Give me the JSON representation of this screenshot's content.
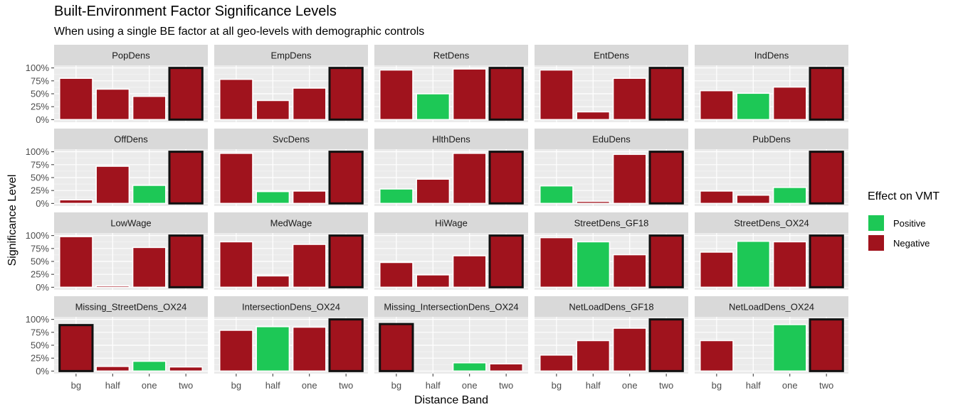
{
  "chart_data": {
    "type": "bar",
    "title": "Built-Environment Factor Significance Levels",
    "subtitle": "When using a single BE factor at all geo-levels with demographic controls",
    "xlabel": "Distance Band",
    "ylabel": "Significance Level",
    "categories": [
      "bg",
      "half",
      "one",
      "two"
    ],
    "y_ticks": [
      "0%",
      "25%",
      "50%",
      "75%",
      "100%"
    ],
    "ylim": [
      0,
      100
    ],
    "legend": {
      "title": "Effect on VMT",
      "position": "right",
      "items": [
        {
          "label": "Positive",
          "color": "#1dc856"
        },
        {
          "label": "Negative",
          "color": "#a0131d"
        }
      ]
    },
    "colors": {
      "Positive": "#1dc856",
      "Negative": "#a0131d",
      "panel_bg": "#ebebeb",
      "strip_bg": "#d9d9d9",
      "highlight_outline": "#111111"
    },
    "facets": [
      {
        "name": "PopDens",
        "bars": [
          {
            "value": 80,
            "effect": "Negative"
          },
          {
            "value": 59,
            "effect": "Negative"
          },
          {
            "value": 45,
            "effect": "Negative"
          },
          {
            "value": 100,
            "effect": "Negative",
            "outlined": true
          }
        ]
      },
      {
        "name": "EmpDens",
        "bars": [
          {
            "value": 78,
            "effect": "Negative"
          },
          {
            "value": 37,
            "effect": "Negative"
          },
          {
            "value": 61,
            "effect": "Negative"
          },
          {
            "value": 100,
            "effect": "Negative",
            "outlined": true
          }
        ]
      },
      {
        "name": "RetDens",
        "bars": [
          {
            "value": 96,
            "effect": "Negative"
          },
          {
            "value": 50,
            "effect": "Positive"
          },
          {
            "value": 98,
            "effect": "Negative"
          },
          {
            "value": 100,
            "effect": "Negative",
            "outlined": true
          }
        ]
      },
      {
        "name": "EntDens",
        "bars": [
          {
            "value": 96,
            "effect": "Negative"
          },
          {
            "value": 15,
            "effect": "Negative"
          },
          {
            "value": 80,
            "effect": "Negative"
          },
          {
            "value": 100,
            "effect": "Negative",
            "outlined": true
          }
        ]
      },
      {
        "name": "IndDens",
        "bars": [
          {
            "value": 56,
            "effect": "Negative"
          },
          {
            "value": 51,
            "effect": "Positive"
          },
          {
            "value": 63,
            "effect": "Negative"
          },
          {
            "value": 100,
            "effect": "Negative",
            "outlined": true
          }
        ]
      },
      {
        "name": "OffDens",
        "bars": [
          {
            "value": 7,
            "effect": "Negative"
          },
          {
            "value": 72,
            "effect": "Negative"
          },
          {
            "value": 35,
            "effect": "Positive"
          },
          {
            "value": 100,
            "effect": "Negative",
            "outlined": true
          }
        ]
      },
      {
        "name": "SvcDens",
        "bars": [
          {
            "value": 97,
            "effect": "Negative"
          },
          {
            "value": 23,
            "effect": "Positive"
          },
          {
            "value": 24,
            "effect": "Negative"
          },
          {
            "value": 100,
            "effect": "Negative",
            "outlined": true
          }
        ]
      },
      {
        "name": "HlthDens",
        "bars": [
          {
            "value": 28,
            "effect": "Positive"
          },
          {
            "value": 47,
            "effect": "Negative"
          },
          {
            "value": 97,
            "effect": "Negative"
          },
          {
            "value": 100,
            "effect": "Negative",
            "outlined": true
          }
        ]
      },
      {
        "name": "EduDens",
        "bars": [
          {
            "value": 34,
            "effect": "Positive"
          },
          {
            "value": 4,
            "effect": "Negative"
          },
          {
            "value": 95,
            "effect": "Negative"
          },
          {
            "value": 100,
            "effect": "Negative",
            "outlined": true
          }
        ]
      },
      {
        "name": "PubDens",
        "bars": [
          {
            "value": 24,
            "effect": "Negative"
          },
          {
            "value": 16,
            "effect": "Negative"
          },
          {
            "value": 31,
            "effect": "Positive"
          },
          {
            "value": 100,
            "effect": "Negative",
            "outlined": true
          }
        ]
      },
      {
        "name": "LowWage",
        "bars": [
          {
            "value": 98,
            "effect": "Negative"
          },
          {
            "value": 3,
            "effect": "Negative"
          },
          {
            "value": 77,
            "effect": "Negative"
          },
          {
            "value": 100,
            "effect": "Negative",
            "outlined": true
          }
        ]
      },
      {
        "name": "MedWage",
        "bars": [
          {
            "value": 88,
            "effect": "Negative"
          },
          {
            "value": 22,
            "effect": "Negative"
          },
          {
            "value": 83,
            "effect": "Negative"
          },
          {
            "value": 100,
            "effect": "Negative",
            "outlined": true
          }
        ]
      },
      {
        "name": "HiWage",
        "bars": [
          {
            "value": 48,
            "effect": "Negative"
          },
          {
            "value": 24,
            "effect": "Negative"
          },
          {
            "value": 61,
            "effect": "Negative"
          },
          {
            "value": 100,
            "effect": "Negative",
            "outlined": true
          }
        ]
      },
      {
        "name": "StreetDens_GF18",
        "bars": [
          {
            "value": 96,
            "effect": "Negative"
          },
          {
            "value": 88,
            "effect": "Positive"
          },
          {
            "value": 63,
            "effect": "Negative"
          },
          {
            "value": 100,
            "effect": "Negative",
            "outlined": true
          }
        ]
      },
      {
        "name": "StreetDens_OX24",
        "bars": [
          {
            "value": 68,
            "effect": "Negative"
          },
          {
            "value": 89,
            "effect": "Positive"
          },
          {
            "value": 88,
            "effect": "Negative"
          },
          {
            "value": 100,
            "effect": "Negative",
            "outlined": true
          }
        ]
      },
      {
        "name": "Missing_StreetDens_OX24",
        "bars": [
          {
            "value": 89,
            "effect": "Negative",
            "outlined": true
          },
          {
            "value": 9,
            "effect": "Negative"
          },
          {
            "value": 19,
            "effect": "Positive"
          },
          {
            "value": 8,
            "effect": "Negative"
          }
        ]
      },
      {
        "name": "IntersectionDens_OX24",
        "bars": [
          {
            "value": 79,
            "effect": "Negative"
          },
          {
            "value": 86,
            "effect": "Positive"
          },
          {
            "value": 85,
            "effect": "Negative"
          },
          {
            "value": 100,
            "effect": "Negative",
            "outlined": true
          }
        ]
      },
      {
        "name": "Missing_IntersectionDens_OX24",
        "bars": [
          {
            "value": 91,
            "effect": "Negative",
            "outlined": true
          },
          null,
          {
            "value": 16,
            "effect": "Positive"
          },
          {
            "value": 14,
            "effect": "Negative"
          }
        ]
      },
      {
        "name": "NetLoadDens_GF18",
        "bars": [
          {
            "value": 31,
            "effect": "Negative"
          },
          {
            "value": 59,
            "effect": "Negative"
          },
          {
            "value": 83,
            "effect": "Negative"
          },
          {
            "value": 100,
            "effect": "Negative",
            "outlined": true
          }
        ]
      },
      {
        "name": "NetLoadDens_OX24",
        "bars": [
          {
            "value": 59,
            "effect": "Negative"
          },
          null,
          {
            "value": 90,
            "effect": "Positive"
          },
          {
            "value": 100,
            "effect": "Negative",
            "outlined": true
          }
        ]
      }
    ]
  }
}
